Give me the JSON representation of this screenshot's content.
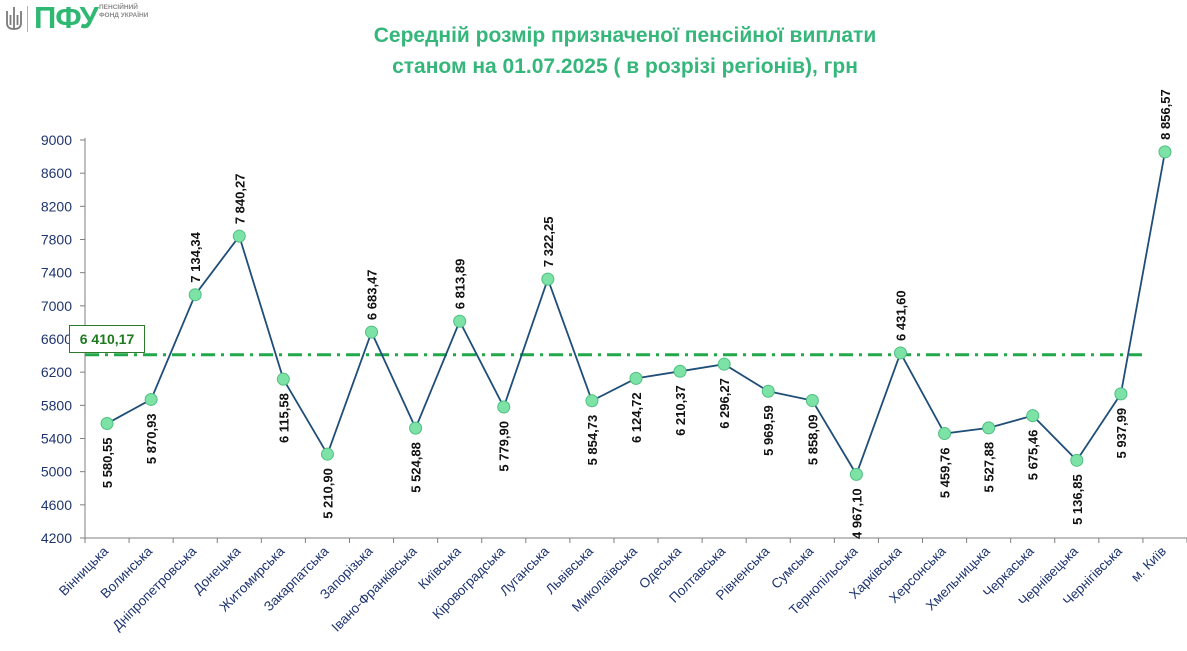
{
  "logo": {
    "text": "ПФУ",
    "subtitle": "ПЕНСІЙНИЙ ФОНД УКРАЇНИ",
    "brand_color": "#2eb872"
  },
  "title_line1": "Середній розмір призначеної пенсійної виплати",
  "title_line2": "станом на 01.07.2025 ( в розрізі регіонів), грн",
  "chart_data": {
    "type": "line",
    "title": "Середній розмір призначеної пенсійної виплати станом на 01.07.2025 ( в розрізі регіонів), грн",
    "categories": [
      "Вінницька",
      "Волинська",
      "Дніпропетровська",
      "Донецька",
      "Житомирська",
      "Закарпатська",
      "Запорізька",
      "Івано-Франківська",
      "Київська",
      "Кіровоградська",
      "Луганська",
      "Львівська",
      "Миколаївська",
      "Одеська",
      "Полтавська",
      "Рівненська",
      "Сумська",
      "Тернопільська",
      "Харківська",
      "Херсонська",
      "Хмельницька",
      "Черкаська",
      "Чернівецька",
      "Чернігівська",
      "м. Київ"
    ],
    "series": [
      {
        "values": [
          5580.55,
          5870.93,
          7134.34,
          7840.27,
          6115.58,
          5210.9,
          6683.47,
          5524.88,
          6813.89,
          5779.9,
          7322.25,
          5854.73,
          6124.72,
          6210.37,
          6296.27,
          5969.59,
          5858.09,
          4967.1,
          6431.6,
          5459.76,
          5527.88,
          5675.46,
          5136.85,
          5937.99,
          8856.57
        ],
        "labels": [
          "5 580,55",
          "5 870,93",
          "7 134,34",
          "7 840,27",
          "6 115,58",
          "5 210,90",
          "6 683,47",
          "5 524,88",
          "6 813,89",
          "5 779,90",
          "7 322,25",
          "5 854,73",
          "6 124,72",
          "6 210,37",
          "6 296,27",
          "5 969,59",
          "5 858,09",
          "4 967,10",
          "6 431,60",
          "5 459,76",
          "5 527,88",
          "5 675,46",
          "5 136,85",
          "5 937,99",
          "8 856,57"
        ],
        "label_position": [
          "below",
          "below",
          "above",
          "above",
          "below",
          "below",
          "above",
          "below",
          "above",
          "below",
          "above",
          "below",
          "below",
          "below",
          "below",
          "below",
          "below",
          "below",
          "above",
          "below",
          "below",
          "below",
          "below",
          "below",
          "above"
        ],
        "line_color": "#1f4e79",
        "marker_color": "#7de2a6"
      }
    ],
    "average": {
      "value": 6410.17,
      "label": "6 410,17",
      "color": "#22a84a",
      "style": "dash-dot"
    },
    "ylim": [
      4200,
      9000
    ],
    "yticks": [
      4200,
      4600,
      5000,
      5400,
      5800,
      6200,
      6600,
      7000,
      7400,
      7800,
      8200,
      8600,
      9000
    ],
    "grid": false,
    "xlabel": "",
    "ylabel": ""
  }
}
